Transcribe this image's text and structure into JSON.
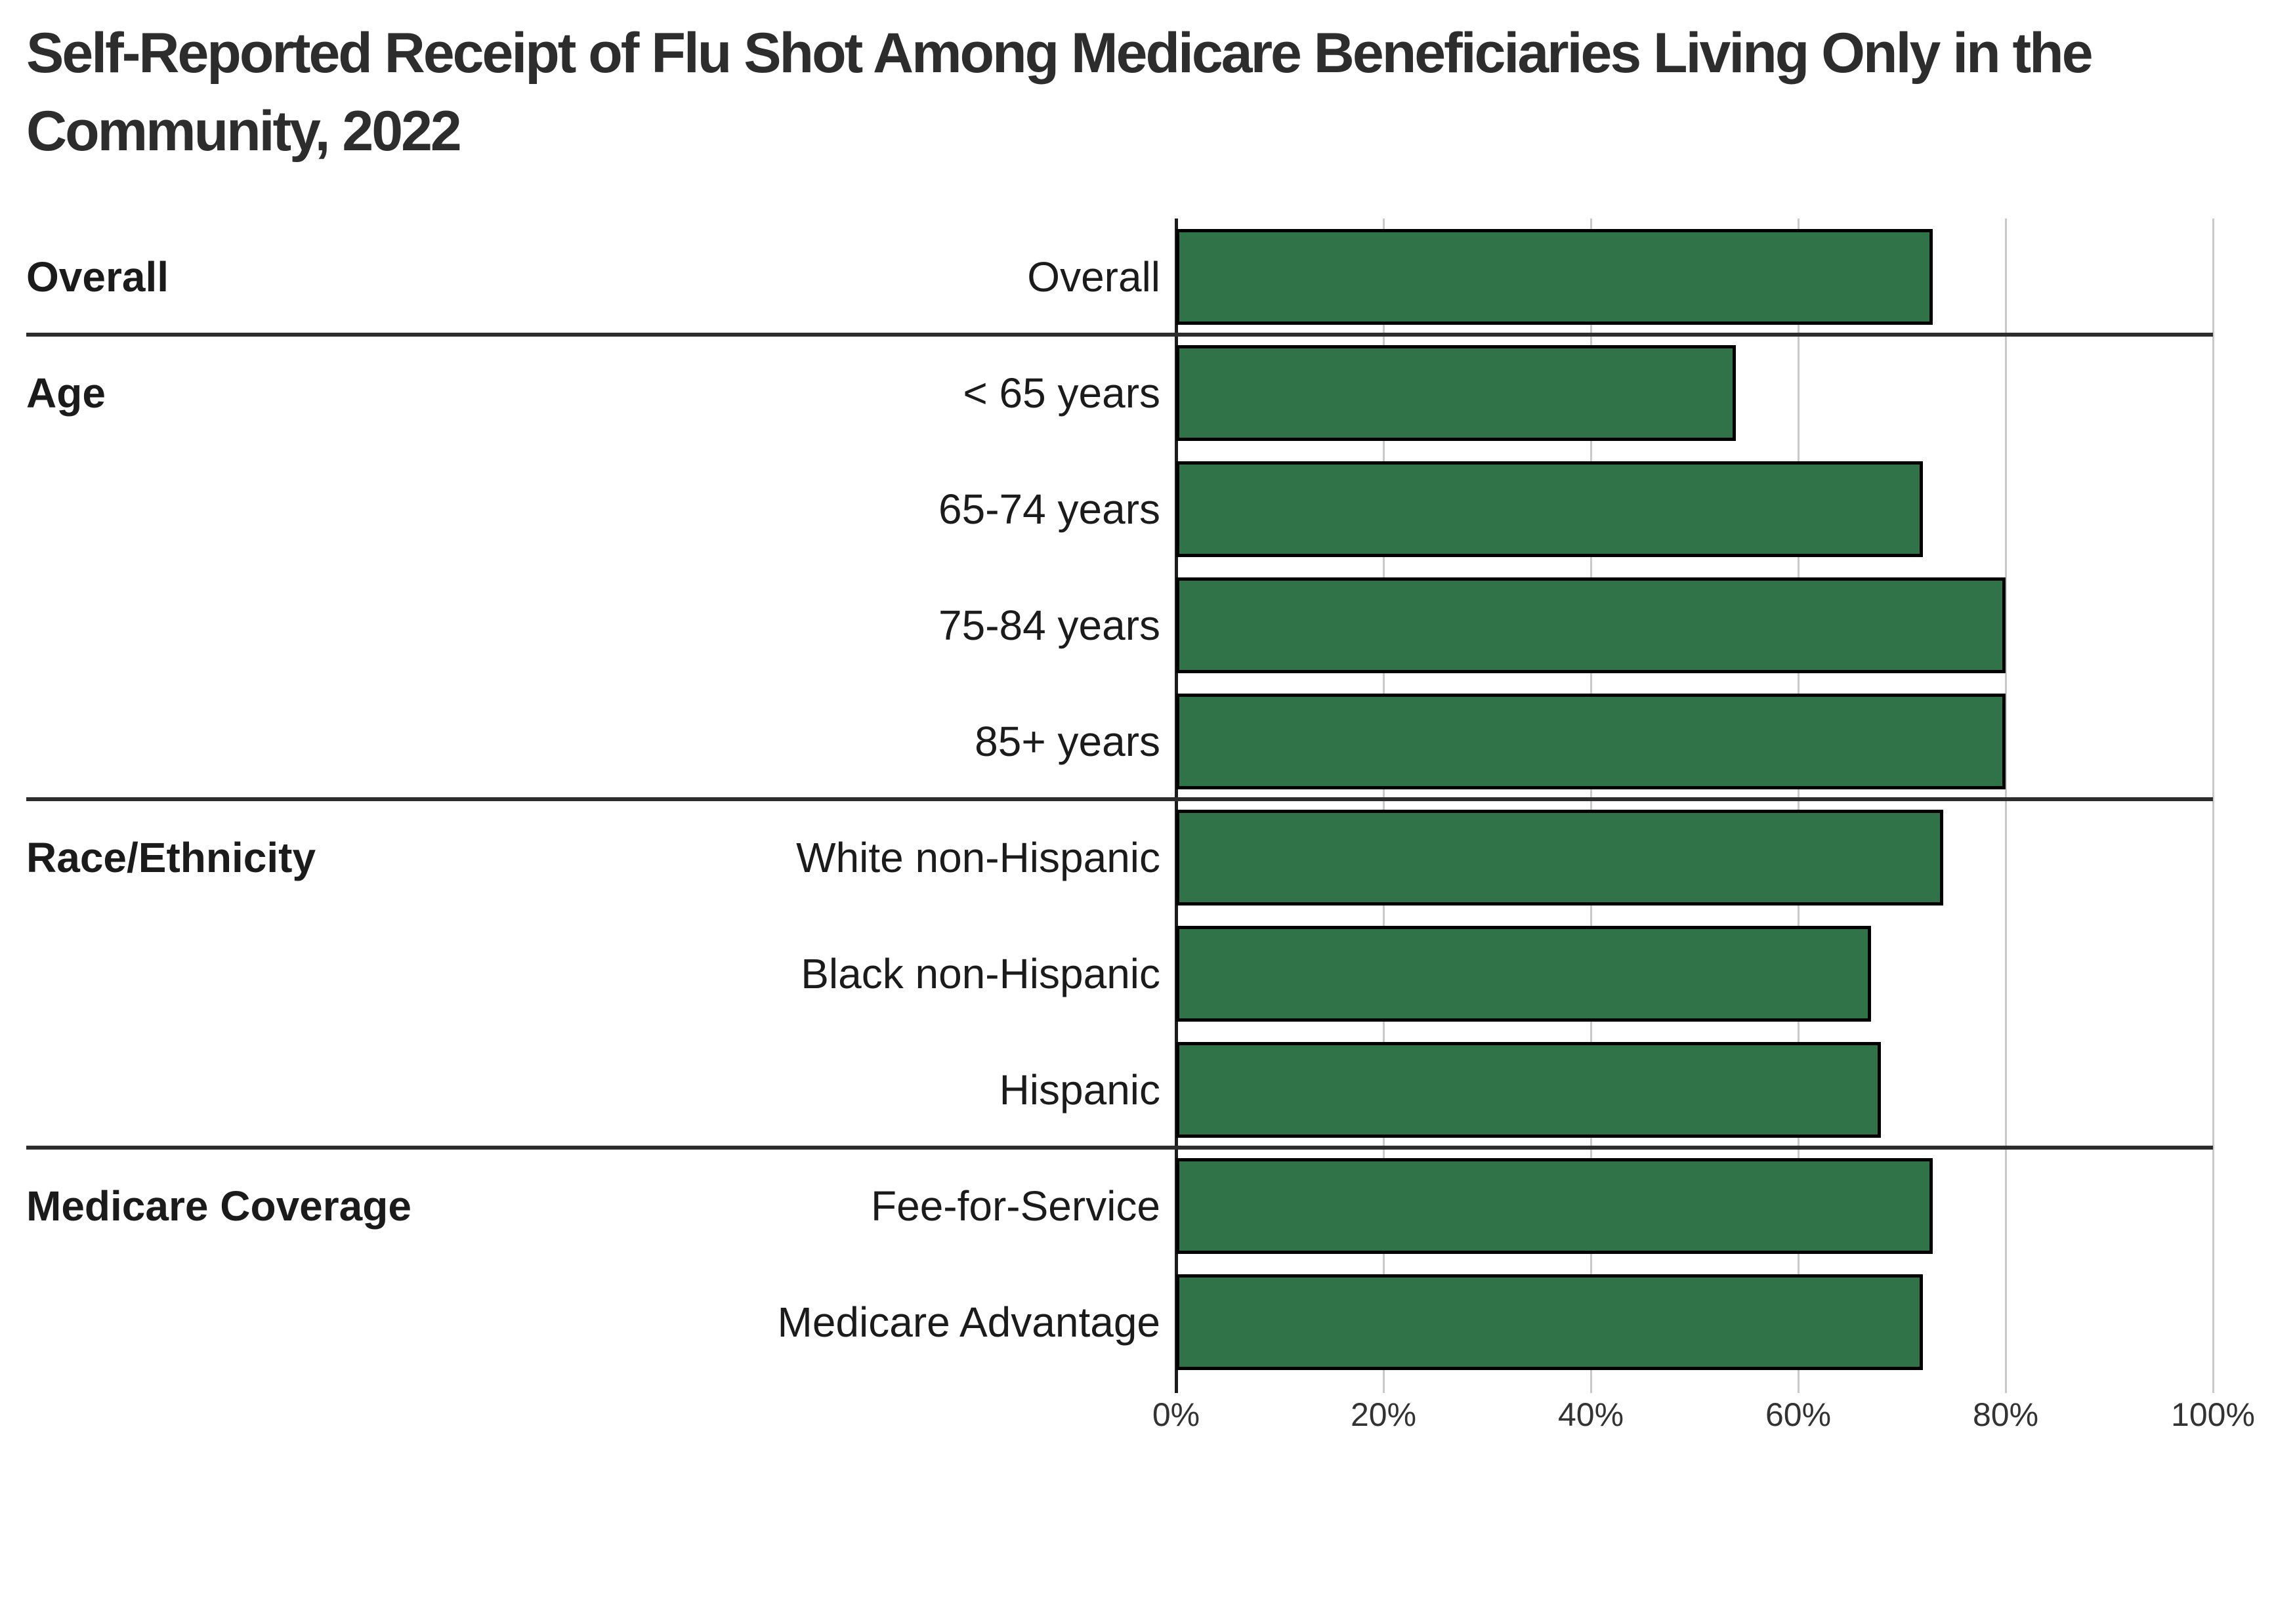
{
  "title": {
    "line1": "Self-Reported Receipt of Flu Shot Among Medicare Beneficiaries Living Only in the",
    "line2": "Community, 2022"
  },
  "chart_data": {
    "type": "bar",
    "orientation": "horizontal",
    "title": "Self-Reported Receipt of Flu Shot Among Medicare Beneficiaries Living Only in the Community, 2022",
    "xlabel": "",
    "ylabel": "",
    "xlim": [
      0,
      100
    ],
    "grid": true,
    "legend": "none",
    "x_axis": {
      "ticks": [
        {
          "value": 0,
          "label": "0%"
        },
        {
          "value": 20,
          "label": "20%"
        },
        {
          "value": 40,
          "label": "40%"
        },
        {
          "value": 60,
          "label": "60%"
        },
        {
          "value": 80,
          "label": "80%"
        },
        {
          "value": 100,
          "label": "100%"
        }
      ]
    },
    "groups": [
      {
        "label": "Overall",
        "rows": [
          {
            "label": "Overall",
            "value": 73
          }
        ]
      },
      {
        "label": "Age",
        "rows": [
          {
            "label": "< 65 years",
            "value": 54
          },
          {
            "label": "65-74 years",
            "value": 72
          },
          {
            "label": "75-84 years",
            "value": 80
          },
          {
            "label": "85+ years",
            "value": 80
          }
        ]
      },
      {
        "label": "Race/Ethnicity",
        "rows": [
          {
            "label": "White non-Hispanic",
            "value": 74
          },
          {
            "label": "Black non-Hispanic",
            "value": 67
          },
          {
            "label": "Hispanic",
            "value": 68
          }
        ]
      },
      {
        "label": "Medicare Coverage",
        "rows": [
          {
            "label": "Fee-for-Service",
            "value": 73
          },
          {
            "label": "Medicare Advantage",
            "value": 72
          }
        ]
      }
    ],
    "colors": {
      "bar_fill": "#317349",
      "bar_border": "#000000",
      "gridline": "#c9c9c9",
      "axis_line": "#1c1c1c",
      "group_divider": "#2d2d2d",
      "title_text": "#2d2d2d",
      "label_text": "#1b1b1b",
      "tick_text": "#333333",
      "background": "#ffffff"
    }
  }
}
